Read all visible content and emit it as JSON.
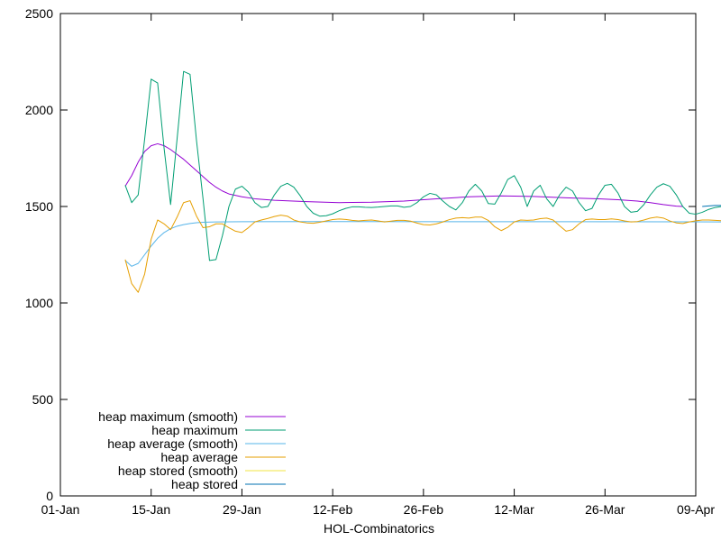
{
  "chart_data": {
    "type": "line",
    "xlabel": "HOL-Combinatorics",
    "ylabel": "",
    "ylim": [
      0,
      2500
    ],
    "xlim": [
      "01-Jan",
      "09-Apr"
    ],
    "grid": false,
    "legend_position": "bottom-left",
    "y_ticks": [
      "0",
      "500",
      "1000",
      "1500",
      "2000",
      "2500"
    ],
    "x_ticks": [
      "01-Jan",
      "15-Jan",
      "29-Jan",
      "12-Feb",
      "26-Feb",
      "12-Mar",
      "26-Mar",
      "09-Apr"
    ],
    "legend_order": [
      "heap maximum (smooth)",
      "heap maximum",
      "heap average (smooth)",
      "heap average",
      "heap stored (smooth)",
      "heap stored"
    ],
    "series": [
      {
        "name": "heap maximum (smooth)",
        "color": "#9400d3",
        "points": [
          [
            10,
            1605
          ],
          [
            11,
            1660
          ],
          [
            12,
            1730
          ],
          [
            13,
            1785
          ],
          [
            14,
            1815
          ],
          [
            15,
            1825
          ],
          [
            16,
            1815
          ],
          [
            17,
            1795
          ],
          [
            18,
            1770
          ],
          [
            19,
            1745
          ],
          [
            20,
            1715
          ],
          [
            21,
            1685
          ],
          [
            22,
            1655
          ],
          [
            23,
            1625
          ],
          [
            24,
            1600
          ],
          [
            25,
            1580
          ],
          [
            26,
            1565
          ],
          [
            28,
            1550
          ],
          [
            30,
            1540
          ],
          [
            33,
            1532
          ],
          [
            38,
            1525
          ],
          [
            43,
            1520
          ],
          [
            48,
            1522
          ],
          [
            53,
            1528
          ],
          [
            58,
            1540
          ],
          [
            63,
            1550
          ],
          [
            68,
            1555
          ],
          [
            73,
            1552
          ],
          [
            78,
            1545
          ],
          [
            83,
            1540
          ],
          [
            86,
            1535
          ],
          [
            89,
            1528
          ],
          [
            91,
            1520
          ],
          [
            93,
            1510
          ],
          [
            95,
            1502
          ],
          [
            96,
            1500
          ]
        ]
      },
      {
        "name": "heap maximum",
        "color": "#009e73",
        "points": [
          [
            10,
            1610
          ],
          [
            11,
            1520
          ],
          [
            12,
            1560
          ],
          [
            13,
            1850
          ],
          [
            14,
            2160
          ],
          [
            15,
            2140
          ],
          [
            16,
            1800
          ],
          [
            17,
            1510
          ],
          [
            18,
            1850
          ],
          [
            19,
            2200
          ],
          [
            20,
            2185
          ],
          [
            21,
            1840
          ],
          [
            22,
            1540
          ],
          [
            23,
            1220
          ],
          [
            24,
            1225
          ],
          [
            25,
            1350
          ],
          [
            26,
            1500
          ],
          [
            27,
            1590
          ],
          [
            28,
            1605
          ],
          [
            29,
            1575
          ],
          [
            30,
            1520
          ],
          [
            31,
            1495
          ],
          [
            32,
            1500
          ],
          [
            33,
            1560
          ],
          [
            34,
            1605
          ],
          [
            35,
            1620
          ],
          [
            36,
            1600
          ],
          [
            37,
            1555
          ],
          [
            38,
            1500
          ],
          [
            39,
            1465
          ],
          [
            40,
            1450
          ],
          [
            41,
            1452
          ],
          [
            42,
            1462
          ],
          [
            43,
            1478
          ],
          [
            44,
            1490
          ],
          [
            45,
            1498
          ],
          [
            46,
            1498
          ],
          [
            47,
            1496
          ],
          [
            48,
            1495
          ],
          [
            49,
            1497
          ],
          [
            50,
            1500
          ],
          [
            51,
            1503
          ],
          [
            52,
            1503
          ],
          [
            53,
            1496
          ],
          [
            54,
            1500
          ],
          [
            55,
            1520
          ],
          [
            56,
            1550
          ],
          [
            57,
            1568
          ],
          [
            58,
            1560
          ],
          [
            59,
            1528
          ],
          [
            60,
            1500
          ],
          [
            61,
            1482
          ],
          [
            62,
            1520
          ],
          [
            63,
            1580
          ],
          [
            64,
            1615
          ],
          [
            65,
            1580
          ],
          [
            66,
            1515
          ],
          [
            67,
            1512
          ],
          [
            68,
            1570
          ],
          [
            69,
            1640
          ],
          [
            70,
            1660
          ],
          [
            71,
            1600
          ],
          [
            72,
            1500
          ],
          [
            73,
            1580
          ],
          [
            74,
            1610
          ],
          [
            75,
            1540
          ],
          [
            76,
            1500
          ],
          [
            77,
            1560
          ],
          [
            78,
            1600
          ],
          [
            79,
            1580
          ],
          [
            80,
            1520
          ],
          [
            81,
            1478
          ],
          [
            82,
            1490
          ],
          [
            83,
            1560
          ],
          [
            84,
            1610
          ],
          [
            85,
            1615
          ],
          [
            86,
            1570
          ],
          [
            87,
            1500
          ],
          [
            88,
            1470
          ],
          [
            89,
            1475
          ],
          [
            90,
            1510
          ],
          [
            91,
            1560
          ],
          [
            92,
            1600
          ],
          [
            93,
            1618
          ],
          [
            94,
            1605
          ],
          [
            95,
            1560
          ],
          [
            96,
            1500
          ],
          [
            97,
            1465
          ],
          [
            98,
            1460
          ],
          [
            99,
            1470
          ],
          [
            100,
            1485
          ],
          [
            101,
            1495
          ],
          [
            102,
            1500
          ],
          [
            103,
            1500
          ],
          [
            104,
            1497
          ]
        ]
      },
      {
        "name": "heap average (smooth)",
        "color": "#56b4e9",
        "points": [
          [
            10,
            1220
          ],
          [
            11,
            1190
          ],
          [
            12,
            1205
          ],
          [
            13,
            1250
          ],
          [
            14,
            1295
          ],
          [
            15,
            1335
          ],
          [
            16,
            1365
          ],
          [
            17,
            1385
          ],
          [
            18,
            1398
          ],
          [
            19,
            1406
          ],
          [
            20,
            1412
          ],
          [
            21,
            1416
          ],
          [
            22,
            1418
          ],
          [
            24,
            1420
          ],
          [
            28,
            1421
          ],
          [
            40,
            1422
          ],
          [
            60,
            1421
          ],
          [
            80,
            1421
          ],
          [
            104,
            1420
          ]
        ]
      },
      {
        "name": "heap average",
        "color": "#e69f00",
        "points": [
          [
            10,
            1225
          ],
          [
            11,
            1100
          ],
          [
            12,
            1055
          ],
          [
            13,
            1150
          ],
          [
            14,
            1330
          ],
          [
            15,
            1430
          ],
          [
            16,
            1410
          ],
          [
            17,
            1380
          ],
          [
            18,
            1445
          ],
          [
            19,
            1520
          ],
          [
            20,
            1530
          ],
          [
            21,
            1450
          ],
          [
            22,
            1390
          ],
          [
            23,
            1395
          ],
          [
            24,
            1410
          ],
          [
            25,
            1410
          ],
          [
            26,
            1390
          ],
          [
            27,
            1372
          ],
          [
            28,
            1365
          ],
          [
            29,
            1390
          ],
          [
            30,
            1420
          ],
          [
            31,
            1430
          ],
          [
            32,
            1438
          ],
          [
            33,
            1448
          ],
          [
            34,
            1455
          ],
          [
            35,
            1450
          ],
          [
            36,
            1430
          ],
          [
            37,
            1420
          ],
          [
            38,
            1415
          ],
          [
            39,
            1413
          ],
          [
            40,
            1418
          ],
          [
            41,
            1425
          ],
          [
            42,
            1432
          ],
          [
            43,
            1435
          ],
          [
            44,
            1433
          ],
          [
            45,
            1428
          ],
          [
            46,
            1425
          ],
          [
            47,
            1428
          ],
          [
            48,
            1430
          ],
          [
            49,
            1425
          ],
          [
            50,
            1420
          ],
          [
            51,
            1424
          ],
          [
            52,
            1428
          ],
          [
            53,
            1428
          ],
          [
            54,
            1424
          ],
          [
            55,
            1414
          ],
          [
            56,
            1406
          ],
          [
            57,
            1404
          ],
          [
            58,
            1410
          ],
          [
            59,
            1420
          ],
          [
            60,
            1432
          ],
          [
            61,
            1440
          ],
          [
            62,
            1442
          ],
          [
            63,
            1440
          ],
          [
            64,
            1445
          ],
          [
            65,
            1445
          ],
          [
            66,
            1428
          ],
          [
            67,
            1395
          ],
          [
            68,
            1375
          ],
          [
            69,
            1392
          ],
          [
            70,
            1420
          ],
          [
            71,
            1430
          ],
          [
            72,
            1428
          ],
          [
            73,
            1430
          ],
          [
            74,
            1437
          ],
          [
            75,
            1440
          ],
          [
            76,
            1430
          ],
          [
            77,
            1400
          ],
          [
            78,
            1372
          ],
          [
            79,
            1380
          ],
          [
            80,
            1410
          ],
          [
            81,
            1432
          ],
          [
            82,
            1435
          ],
          [
            83,
            1432
          ],
          [
            84,
            1432
          ],
          [
            85,
            1436
          ],
          [
            86,
            1432
          ],
          [
            87,
            1425
          ],
          [
            88,
            1420
          ],
          [
            89,
            1422
          ],
          [
            90,
            1430
          ],
          [
            91,
            1440
          ],
          [
            92,
            1445
          ],
          [
            93,
            1440
          ],
          [
            94,
            1425
          ],
          [
            95,
            1415
          ],
          [
            96,
            1412
          ],
          [
            97,
            1420
          ],
          [
            98,
            1426
          ],
          [
            99,
            1430
          ],
          [
            100,
            1430
          ],
          [
            101,
            1428
          ],
          [
            102,
            1426
          ],
          [
            103,
            1420
          ],
          [
            104,
            1412
          ]
        ]
      },
      {
        "name": "heap stored (smooth)",
        "color": "#f0e442",
        "points": []
      },
      {
        "name": "heap stored",
        "color": "#0072b2",
        "points": [
          [
            99,
            1500
          ],
          [
            100,
            1503
          ],
          [
            101,
            1505
          ],
          [
            102,
            1505
          ],
          [
            103,
            1503
          ]
        ]
      }
    ]
  }
}
